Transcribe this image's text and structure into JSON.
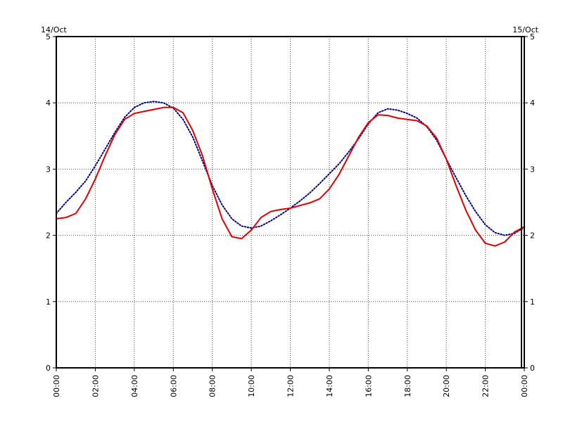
{
  "chart_data": {
    "type": "line",
    "title": "",
    "xlabel": "",
    "ylabel": "",
    "date_labels": {
      "left": "14/Oct",
      "right": "15/Oct"
    },
    "xlim": [
      0,
      24
    ],
    "ylim": [
      0,
      5
    ],
    "yticks": [
      0,
      1,
      2,
      3,
      4,
      5
    ],
    "xticks": [
      0,
      2,
      4,
      6,
      8,
      10,
      12,
      14,
      16,
      18,
      20,
      22,
      24
    ],
    "xtick_labels": [
      "00:00",
      "02:00",
      "04:00",
      "06:00",
      "08:00",
      "10:00",
      "12:00",
      "14:00",
      "16:00",
      "18:00",
      "20:00",
      "22:00",
      "00:00"
    ],
    "grid": true,
    "grid_style": "dotted",
    "right_axis": true,
    "series": [
      {
        "name": "",
        "color": "#00008b",
        "style": "dotted",
        "x": [
          0.0,
          0.5,
          1.0,
          1.5,
          2.0,
          2.5,
          3.0,
          3.5,
          4.0,
          4.5,
          5.0,
          5.5,
          6.0,
          6.5,
          7.0,
          7.5,
          8.0,
          8.5,
          9.0,
          9.5,
          10.0,
          10.5,
          11.0,
          11.5,
          12.0,
          12.5,
          13.0,
          13.5,
          14.0,
          14.5,
          15.0,
          15.5,
          16.0,
          16.5,
          17.0,
          17.5,
          18.0,
          18.5,
          19.0,
          19.5,
          20.0,
          20.5,
          21.0,
          21.5,
          22.0,
          22.5,
          23.0,
          23.5,
          24.0
        ],
        "y": [
          2.33,
          2.5,
          2.65,
          2.82,
          3.05,
          3.3,
          3.55,
          3.78,
          3.93,
          4.0,
          4.02,
          4.0,
          3.92,
          3.75,
          3.48,
          3.12,
          2.75,
          2.46,
          2.25,
          2.14,
          2.11,
          2.14,
          2.22,
          2.31,
          2.41,
          2.52,
          2.64,
          2.78,
          2.93,
          3.08,
          3.26,
          3.46,
          3.68,
          3.85,
          3.91,
          3.89,
          3.84,
          3.77,
          3.64,
          3.44,
          3.15,
          2.87,
          2.6,
          2.36,
          2.16,
          2.04,
          2.0,
          2.03,
          2.12
        ]
      },
      {
        "name": "",
        "color": "#e00000",
        "style": "solid",
        "x": [
          0.0,
          0.5,
          1.0,
          1.5,
          2.0,
          2.5,
          3.0,
          3.5,
          4.0,
          4.5,
          5.0,
          5.5,
          6.0,
          6.5,
          7.0,
          7.5,
          8.0,
          8.5,
          9.0,
          9.5,
          10.0,
          10.5,
          11.0,
          11.5,
          12.0,
          12.5,
          13.0,
          13.5,
          14.0,
          14.5,
          15.0,
          15.5,
          16.0,
          16.5,
          17.0,
          17.5,
          18.0,
          18.5,
          19.0,
          19.5,
          20.0,
          20.5,
          21.0,
          21.5,
          22.0,
          22.5,
          23.0,
          23.5,
          24.0
        ],
        "y": [
          2.25,
          2.27,
          2.33,
          2.55,
          2.85,
          3.2,
          3.52,
          3.75,
          3.84,
          3.87,
          3.9,
          3.93,
          3.93,
          3.85,
          3.58,
          3.2,
          2.7,
          2.25,
          1.98,
          1.95,
          2.08,
          2.27,
          2.36,
          2.39,
          2.41,
          2.45,
          2.49,
          2.55,
          2.7,
          2.92,
          3.2,
          3.48,
          3.7,
          3.82,
          3.81,
          3.77,
          3.75,
          3.73,
          3.65,
          3.47,
          3.15,
          2.75,
          2.38,
          2.08,
          1.88,
          1.84,
          1.9,
          2.05,
          2.13
        ]
      }
    ]
  }
}
